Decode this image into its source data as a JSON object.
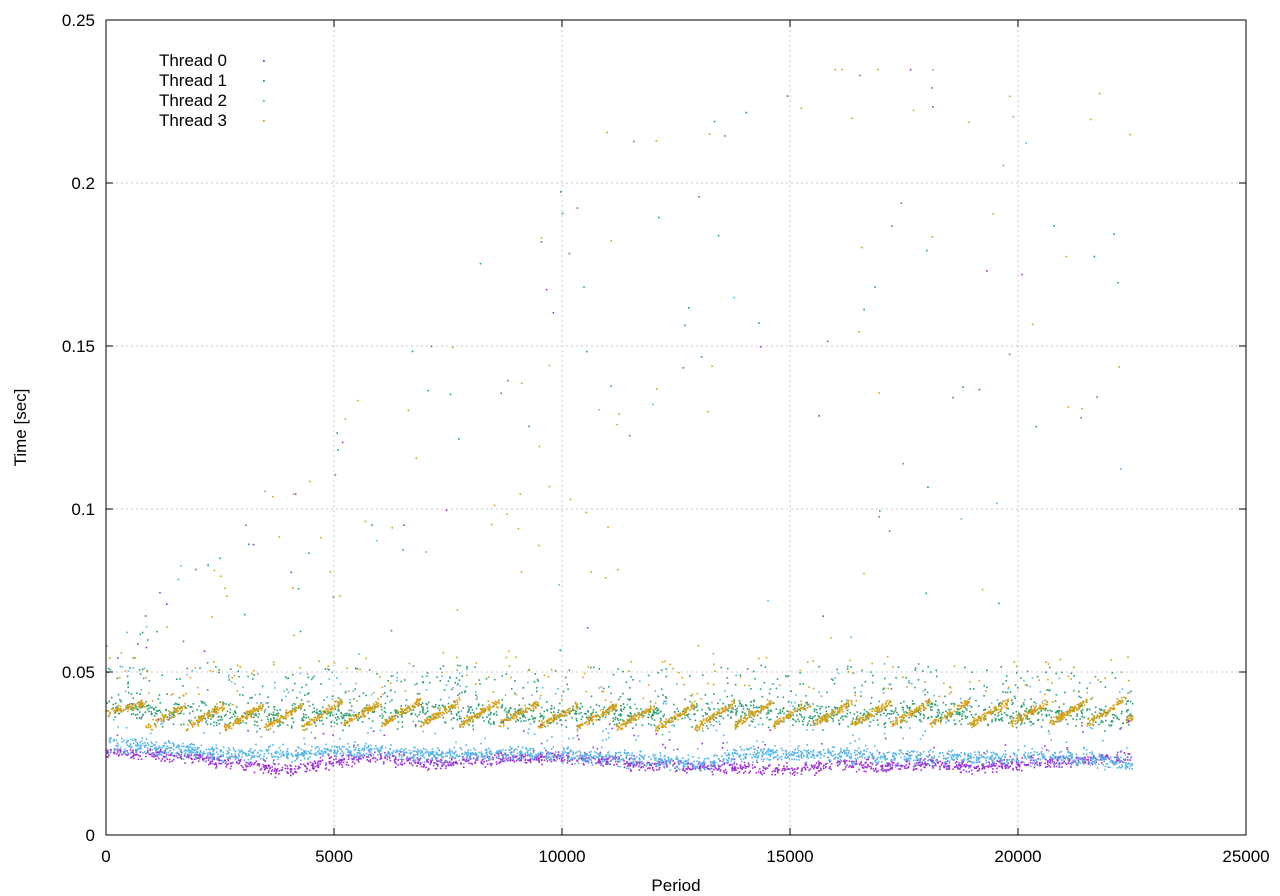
{
  "chart_data": {
    "type": "scatter",
    "title": "",
    "xlabel": "Period",
    "ylabel": "Time [sec]",
    "xlim": [
      0,
      25000
    ],
    "ylim": [
      0,
      0.25
    ],
    "xticks": [
      0,
      5000,
      10000,
      15000,
      20000,
      25000
    ],
    "yticks": [
      0,
      0.05,
      0.1,
      0.15,
      0.2,
      0.25
    ],
    "xtick_labels": [
      "0",
      "5000",
      "10000",
      "15000",
      "20000",
      "25000"
    ],
    "ytick_labels": [
      "0",
      "0.05",
      "0.1",
      "0.15",
      "0.2",
      "0.25"
    ],
    "grid": true,
    "legend_position": "top-left",
    "series": [
      {
        "name": "Thread 0",
        "color": "#9b30d9",
        "typical_range": [
          0.018,
          0.032
        ],
        "x": [
          0,
          1000,
          2000,
          3000,
          4000,
          5000,
          6000,
          7000,
          8000,
          9000,
          10000,
          11000,
          12000,
          13000,
          14000,
          15000,
          16000,
          17000,
          18000,
          19000,
          20000,
          21000,
          22500
        ],
        "y": [
          0.026,
          0.025,
          0.024,
          0.022,
          0.02,
          0.023,
          0.024,
          0.022,
          0.023,
          0.024,
          0.024,
          0.023,
          0.022,
          0.021,
          0.021,
          0.02,
          0.022,
          0.021,
          0.022,
          0.021,
          0.022,
          0.023,
          0.024
        ]
      },
      {
        "name": "Thread 1",
        "color": "#2a9d6e",
        "typical_range": [
          0.025,
          0.05
        ],
        "x": [
          0,
          1000,
          2000,
          3000,
          4000,
          5000,
          6000,
          7000,
          8000,
          9000,
          10000,
          11000,
          12000,
          13000,
          14000,
          15000,
          16000,
          17000,
          18000,
          19000,
          20000,
          21000,
          22500
        ],
        "y": [
          0.04,
          0.038,
          0.037,
          0.037,
          0.037,
          0.037,
          0.037,
          0.038,
          0.037,
          0.037,
          0.037,
          0.037,
          0.037,
          0.037,
          0.038,
          0.037,
          0.037,
          0.037,
          0.038,
          0.037,
          0.037,
          0.037,
          0.037
        ]
      },
      {
        "name": "Thread 2",
        "color": "#56b4e9",
        "typical_range": [
          0.018,
          0.05
        ],
        "x": [
          0,
          1000,
          2000,
          3000,
          4000,
          5000,
          6000,
          7000,
          8000,
          9000,
          10000,
          11000,
          12000,
          13000,
          14000,
          15000,
          16000,
          17000,
          18000,
          19000,
          20000,
          21000,
          22500
        ],
        "y": [
          0.028,
          0.027,
          0.026,
          0.025,
          0.025,
          0.026,
          0.026,
          0.025,
          0.025,
          0.025,
          0.025,
          0.024,
          0.023,
          0.022,
          0.025,
          0.025,
          0.025,
          0.024,
          0.024,
          0.024,
          0.024,
          0.024,
          0.022
        ]
      },
      {
        "name": "Thread 3",
        "color": "#d4a017",
        "typical_range": [
          0.032,
          0.045
        ],
        "x": [
          0,
          1000,
          2000,
          3000,
          4000,
          5000,
          6000,
          7000,
          8000,
          9000,
          10000,
          11000,
          12000,
          13000,
          14000,
          15000,
          16000,
          17000,
          18000,
          19000,
          20000,
          21000,
          22500
        ],
        "y": [
          0.041,
          0.036,
          0.036,
          0.036,
          0.036,
          0.037,
          0.037,
          0.037,
          0.037,
          0.037,
          0.036,
          0.036,
          0.036,
          0.036,
          0.037,
          0.037,
          0.037,
          0.037,
          0.037,
          0.037,
          0.037,
          0.037,
          0.038
        ]
      }
    ],
    "x_max_data": 22500
  }
}
